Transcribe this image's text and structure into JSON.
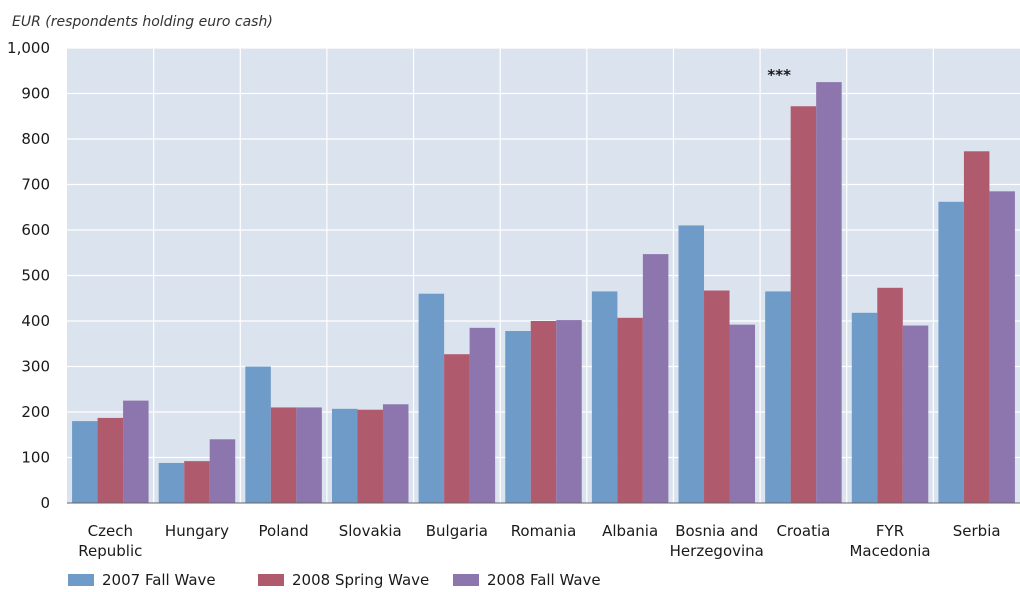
{
  "chart_data": {
    "type": "bar",
    "ylabel": "EUR (respondents holding euro cash)",
    "ylim": [
      0,
      1000
    ],
    "yticks": [
      "0",
      "100",
      "200",
      "300",
      "400",
      "500",
      "600",
      "700",
      "800",
      "900",
      "1,000"
    ],
    "categories": [
      [
        "Czech",
        "Republic"
      ],
      [
        "Hungary"
      ],
      [
        "Poland"
      ],
      [
        "Slovakia"
      ],
      [
        "Bulgaria"
      ],
      [
        "Romania"
      ],
      [
        "Albania"
      ],
      [
        "Bosnia and",
        "Herzegovina"
      ],
      [
        "Croatia"
      ],
      [
        "FYR",
        "Macedonia"
      ],
      [
        "Serbia"
      ]
    ],
    "series": [
      {
        "name": "2007 Fall Wave",
        "color": "#6f9bc8",
        "values": [
          180,
          88,
          300,
          207,
          460,
          378,
          465,
          610,
          465,
          418,
          662
        ]
      },
      {
        "name": "2008 Spring Wave",
        "color": "#b05a6e",
        "values": [
          187,
          92,
          210,
          205,
          327,
          400,
          407,
          467,
          872,
          473,
          773
        ]
      },
      {
        "name": "2008 Fall Wave",
        "color": "#8d76ad",
        "values": [
          225,
          140,
          210,
          217,
          385,
          402,
          547,
          392,
          925,
          390,
          685
        ]
      }
    ],
    "annotations": [
      {
        "category_index": 8,
        "text": "***"
      }
    ],
    "grid": true,
    "legend": "bottom-left",
    "plot_background": "#dbe3ee"
  }
}
